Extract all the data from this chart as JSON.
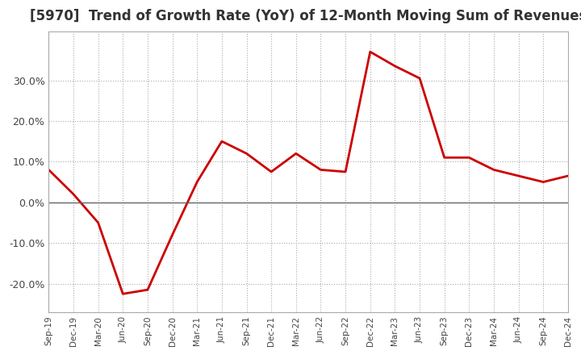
{
  "title": "[5970]  Trend of Growth Rate (YoY) of 12-Month Moving Sum of Revenues",
  "title_fontsize": 12,
  "line_color": "#cc0000",
  "background_color": "#ffffff",
  "grid_color": "#aaaaaa",
  "x_labels": [
    "Sep-19",
    "Dec-19",
    "Mar-20",
    "Jun-20",
    "Sep-20",
    "Dec-20",
    "Mar-21",
    "Jun-21",
    "Sep-21",
    "Dec-21",
    "Mar-22",
    "Jun-22",
    "Sep-22",
    "Dec-22",
    "Mar-23",
    "Jun-23",
    "Sep-23",
    "Dec-23",
    "Mar-24",
    "Jun-24",
    "Sep-24",
    "Dec-24"
  ],
  "y_values": [
    8.0,
    2.0,
    -5.0,
    -22.5,
    -21.5,
    -8.0,
    5.0,
    15.0,
    12.0,
    7.5,
    12.0,
    8.0,
    7.5,
    37.0,
    33.5,
    30.5,
    11.0,
    11.0,
    8.0,
    6.5,
    5.0,
    6.5
  ],
  "ylim": [
    -27,
    42
  ],
  "yticks": [
    -20.0,
    -10.0,
    0.0,
    10.0,
    20.0,
    30.0
  ]
}
